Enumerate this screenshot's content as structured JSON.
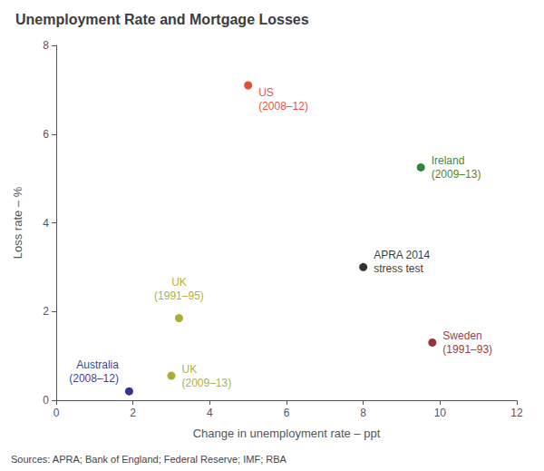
{
  "chart_data": {
    "type": "scatter",
    "title": "Unemployment Rate and Mortgage Losses",
    "x_label": "Change in unemployment rate – ppt",
    "y_label": "Loss rate – %",
    "source": "Sources: APRA; Bank of England; Federal Reserve; IMF; RBA",
    "xlim": [
      0,
      12
    ],
    "ylim": [
      0,
      8
    ],
    "xticks": [
      0,
      2,
      4,
      6,
      8,
      10,
      12
    ],
    "yticks": [
      0,
      2,
      4,
      6,
      8
    ],
    "x": [
      5.0,
      9.5,
      8.0,
      3.2,
      3.0,
      1.9,
      9.8
    ],
    "values": [
      7.1,
      5.25,
      3.0,
      1.85,
      0.55,
      0.2,
      1.3
    ],
    "colors": [
      "#dd2200",
      "#006600",
      "#000000",
      "#999900",
      "#999900",
      "#000080",
      "#800000"
    ],
    "point_labels": [
      [
        "US",
        "(2008–12)"
      ],
      [
        "Ireland",
        "(2009–13)"
      ],
      [
        "APRA 2014",
        "stress test"
      ],
      [
        "UK",
        "(1991–95)"
      ],
      [
        "UK",
        "(2009–13)"
      ],
      [
        "Australia",
        "(2008–12)"
      ],
      [
        "Sweden",
        "(1991–93)"
      ]
    ],
    "grid": false
  }
}
